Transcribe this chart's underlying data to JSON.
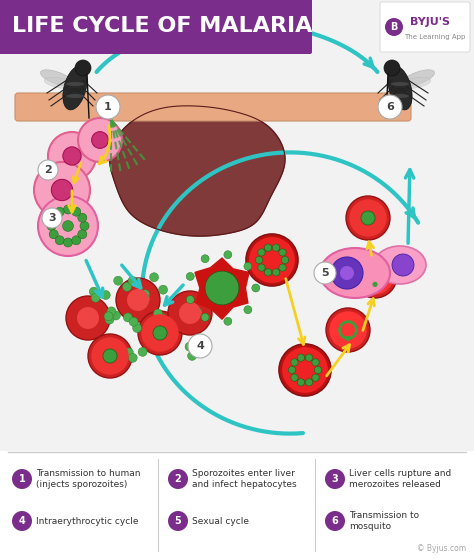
{
  "title": "LIFE CYCLE OF MALARIA",
  "title_bg": "#7B2D8B",
  "title_color": "#FFFFFF",
  "bg_color": "#F2F2F2",
  "legend": [
    {
      "num": "1",
      "text": "Transmission to human\n(injects sporozoites)"
    },
    {
      "num": "2",
      "text": "Sporozoites enter liver\nand infect hepatocytes"
    },
    {
      "num": "3",
      "text": "Liver cells rupture and\nmerozoites released"
    },
    {
      "num": "4",
      "text": "Intraerythrocytic cycle"
    },
    {
      "num": "5",
      "text": "Sexual cycle"
    },
    {
      "num": "6",
      "text": "Transmission to\nmosquito"
    }
  ],
  "arrow_cyan": "#2EC4C4",
  "arrow_yellow": "#F5D020",
  "purple_circle": "#7B2D8B",
  "skin_color": "#E8A882",
  "liver_color": "#7B3030",
  "pink_cell": "#F48FB1",
  "red_cell": "#C0392B",
  "green_color": "#4CAF50",
  "mosquito_color": "#333333",
  "white": "#FFFFFF"
}
